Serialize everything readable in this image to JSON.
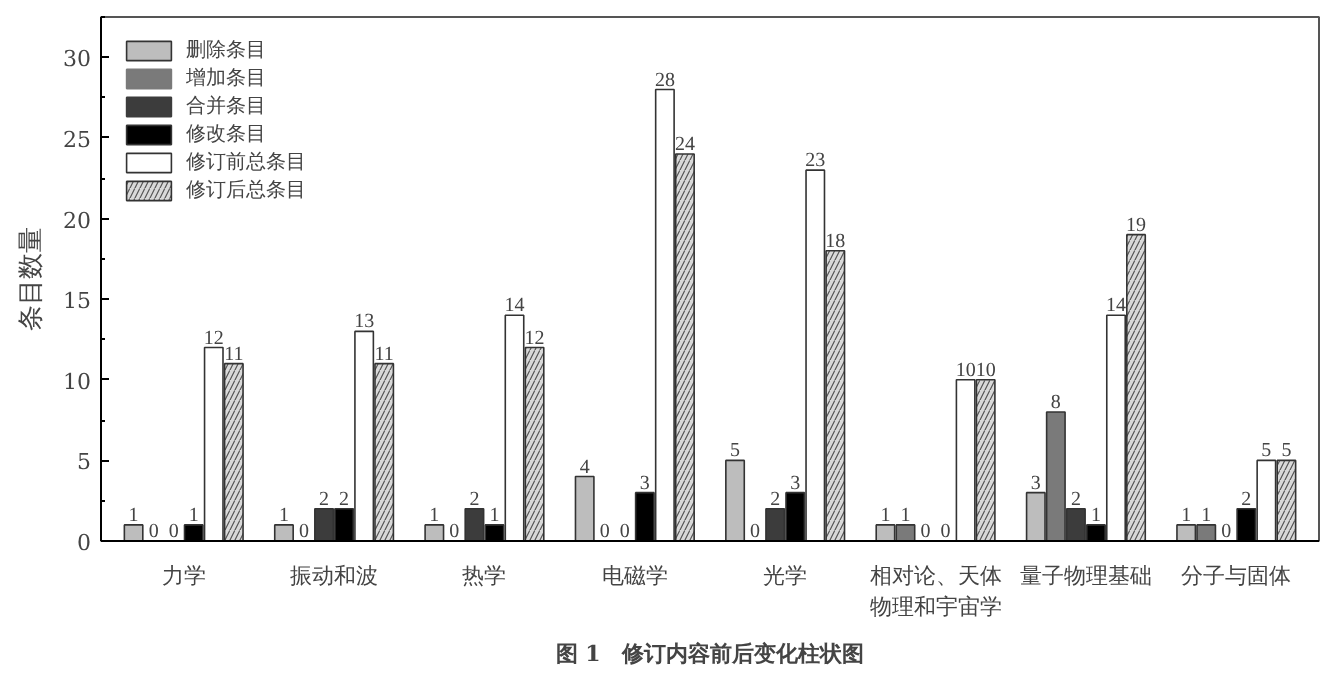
{
  "chart_data": {
    "type": "bar",
    "ylabel": "条目数量",
    "categories": [
      "力学",
      "振动和波",
      "热学",
      "电磁学",
      "光学",
      "相对论、天体物理和宇宙学",
      "量子物理基础",
      "分子与固体"
    ],
    "series": [
      {
        "name": "删除条目",
        "color": "#bdbdbd",
        "values": [
          1,
          1,
          1,
          4,
          5,
          1,
          3,
          1
        ]
      },
      {
        "name": "增加条目",
        "color": "#7a7a7a",
        "values": [
          0,
          0,
          0,
          0,
          0,
          1,
          8,
          1
        ]
      },
      {
        "name": "合并条目",
        "color": "#3c3c3c",
        "values": [
          0,
          2,
          2,
          0,
          2,
          0,
          2,
          0
        ]
      },
      {
        "name": "修改条目",
        "color": "#000000",
        "values": [
          1,
          2,
          1,
          3,
          3,
          0,
          1,
          2
        ]
      },
      {
        "name": "修订前总条目",
        "color": "#ffffff",
        "values": [
          12,
          13,
          14,
          28,
          23,
          10,
          14,
          5
        ]
      },
      {
        "name": "修订后总条目",
        "color": "#d9d9d9",
        "values": [
          11,
          11,
          12,
          24,
          18,
          10,
          19,
          5
        ]
      }
    ],
    "ylim": [
      0,
      32.5
    ],
    "yticks": [
      0,
      5,
      10,
      15,
      20,
      25,
      30
    ],
    "data_labels": true,
    "grid": false,
    "legend": "top left",
    "annotations": [
      "图 1　修订内容前后变化柱状图"
    ]
  }
}
